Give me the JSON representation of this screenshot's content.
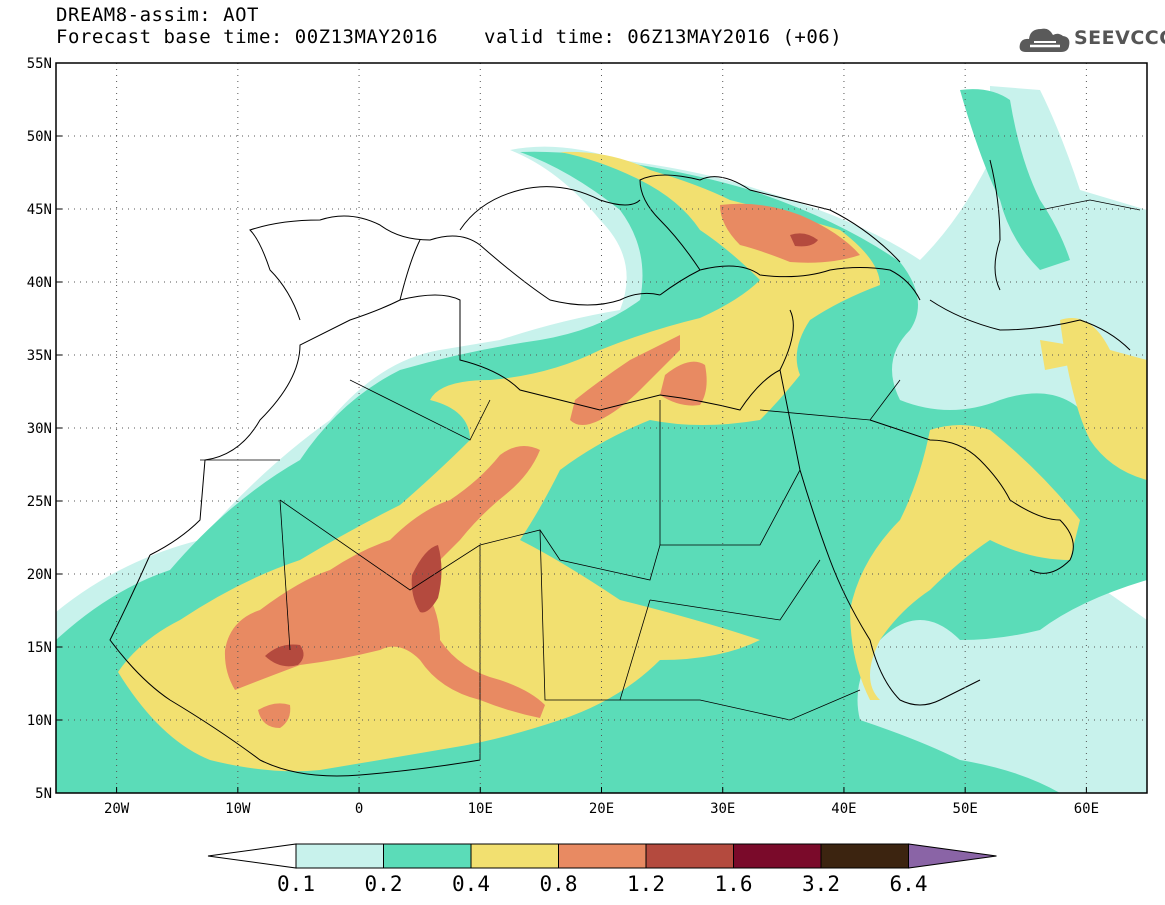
{
  "header": {
    "title": "DREAM8-assim: AOT",
    "base_time": "Forecast base time: 00Z13MAY2016",
    "valid_time": "valid time: 06Z13MAY2016 (+06)",
    "logo_text": "SEEVCCC"
  },
  "map": {
    "lon_range": [
      -25,
      65
    ],
    "lat_range": [
      5,
      55
    ],
    "lon_ticks": [
      {
        "value": -20,
        "label": "20W"
      },
      {
        "value": -10,
        "label": "10W"
      },
      {
        "value": 0,
        "label": "0"
      },
      {
        "value": 10,
        "label": "10E"
      },
      {
        "value": 20,
        "label": "20E"
      },
      {
        "value": 30,
        "label": "30E"
      },
      {
        "value": 40,
        "label": "40E"
      },
      {
        "value": 50,
        "label": "50E"
      },
      {
        "value": 60,
        "label": "60E"
      }
    ],
    "lat_ticks": [
      {
        "value": 5,
        "label": "5N"
      },
      {
        "value": 10,
        "label": "10N"
      },
      {
        "value": 15,
        "label": "15N"
      },
      {
        "value": 20,
        "label": "20N"
      },
      {
        "value": 25,
        "label": "25N"
      },
      {
        "value": 30,
        "label": "30N"
      },
      {
        "value": 35,
        "label": "35N"
      },
      {
        "value": 40,
        "label": "40N"
      },
      {
        "value": 45,
        "label": "45N"
      },
      {
        "value": 50,
        "label": "50N"
      },
      {
        "value": 55,
        "label": "55N"
      }
    ],
    "grid": "dotted"
  },
  "colorbar": {
    "levels": [
      "0.1",
      "0.2",
      "0.4",
      "0.8",
      "1.2",
      "1.6",
      "3.2",
      "6.4"
    ],
    "colors": [
      "#ffffff",
      "#c8f2ec",
      "#5bdcb8",
      "#f2e070",
      "#e88a62",
      "#b44a3e",
      "#7a0a2a",
      "#3c2410",
      "#8a64a6"
    ]
  }
}
